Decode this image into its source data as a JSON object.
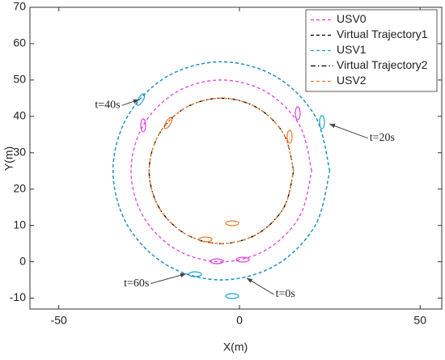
{
  "chart_data": {
    "type": "line",
    "xlabel": "X(m)",
    "ylabel": "Y(m)",
    "xlim": [
      -58,
      56
    ],
    "ylim": [
      -13,
      70
    ],
    "xticks": [
      -50,
      0,
      50
    ],
    "yticks": [
      -10,
      0,
      10,
      20,
      30,
      40,
      50,
      60,
      70
    ],
    "legend": "upper right",
    "series": [
      {
        "name": "USV0",
        "color": "#e040e0",
        "linestyle": "--",
        "x": [
          20,
          16.65,
          7.5,
          -5,
          -17.5,
          -26.65,
          -30,
          -26.65,
          -17.5,
          -5,
          7.5,
          16.65,
          20
        ],
        "values": [
          25,
          37.5,
          46.65,
          50,
          46.65,
          37.5,
          25,
          12.5,
          3.35,
          0,
          3.35,
          12.5,
          25
        ]
      },
      {
        "name": "Virtual Trajectory1",
        "color": "#000000",
        "linestyle": "--",
        "x": [
          25,
          20.98,
          10,
          -5,
          -20,
          -30.98,
          -35,
          -30.98,
          -20,
          -5,
          10,
          20.98,
          25
        ],
        "values": [
          25,
          40,
          50.98,
          55,
          50.98,
          40,
          25,
          10,
          -0.98,
          -5,
          -0.98,
          10,
          25
        ]
      },
      {
        "name": "USV1",
        "color": "#1aa3d9",
        "linestyle": "--",
        "x": [
          25,
          20.98,
          10,
          -5,
          -20,
          -30.98,
          -35,
          -30.98,
          -20,
          -5,
          10,
          20.98,
          25
        ],
        "values": [
          25,
          40,
          50.98,
          55,
          50.98,
          40,
          25,
          10,
          -0.98,
          -5,
          -0.98,
          10,
          25
        ]
      },
      {
        "name": "Virtual Trajectory2",
        "color": "#000000",
        "linestyle": "-.",
        "x": [
          15,
          12.32,
          5,
          -5,
          -15,
          -22.32,
          -25,
          -22.32,
          -15,
          -5,
          5,
          12.32,
          15
        ],
        "values": [
          25,
          35,
          42.32,
          45,
          42.32,
          35,
          25,
          15,
          7.68,
          5,
          7.68,
          15,
          25
        ]
      },
      {
        "name": "USV2",
        "color": "#f07828",
        "linestyle": "--",
        "x": [
          15,
          12.32,
          5,
          -5,
          -15,
          -22.32,
          -25,
          -22.32,
          -15,
          -5,
          5,
          12.32,
          15
        ],
        "values": [
          25,
          35,
          42.32,
          45,
          42.32,
          35,
          25,
          15,
          7.68,
          5,
          7.68,
          15,
          25
        ]
      }
    ],
    "annotations": [
      {
        "text": "t=0s",
        "x": 2,
        "y": -4.5,
        "tx": 10,
        "ty": -9,
        "ha": "left"
      },
      {
        "text": "t=20s",
        "x": 24.9,
        "y": 37.9,
        "tx": 36,
        "ty": 34,
        "ha": "left"
      },
      {
        "text": "t=40s",
        "x": -27.8,
        "y": 44.6,
        "tx": -33,
        "ty": 43,
        "ha": "right"
      },
      {
        "text": "t=60s",
        "x": -14.8,
        "y": -3.3,
        "tx": -25,
        "ty": -6,
        "ha": "right"
      }
    ]
  }
}
